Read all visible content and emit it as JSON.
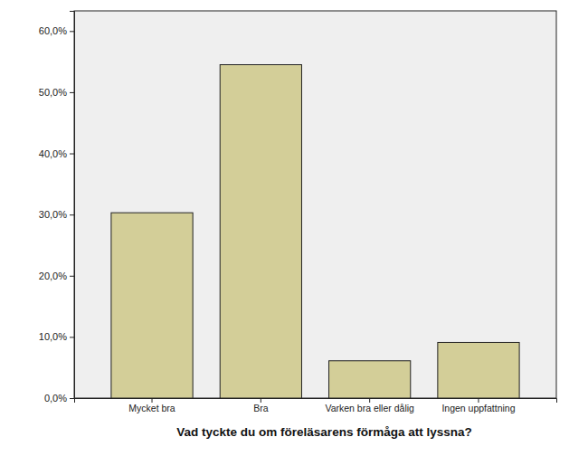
{
  "chart_data": {
    "type": "bar",
    "x_label": "Vad tyckte du om föreläsarens förmåga att lyssna?",
    "categories": [
      "Mycket bra",
      "Bra",
      "Varken bra eller dålig",
      "Ingen uppfattning"
    ],
    "values": [
      30.3,
      54.5,
      6.1,
      9.1
    ],
    "color": "#d3ce98",
    "ylim": [
      0,
      63.3
    ],
    "yticks": [
      {
        "value": 0,
        "label": "0,0%"
      },
      {
        "value": 10,
        "label": "10,0%"
      },
      {
        "value": 20,
        "label": "20,0%"
      },
      {
        "value": 30,
        "label": "30,0%"
      },
      {
        "value": 40,
        "label": "40,0%"
      },
      {
        "value": 50,
        "label": "50,0%"
      },
      {
        "value": 60,
        "label": "60,0%"
      }
    ],
    "grid": false
  }
}
